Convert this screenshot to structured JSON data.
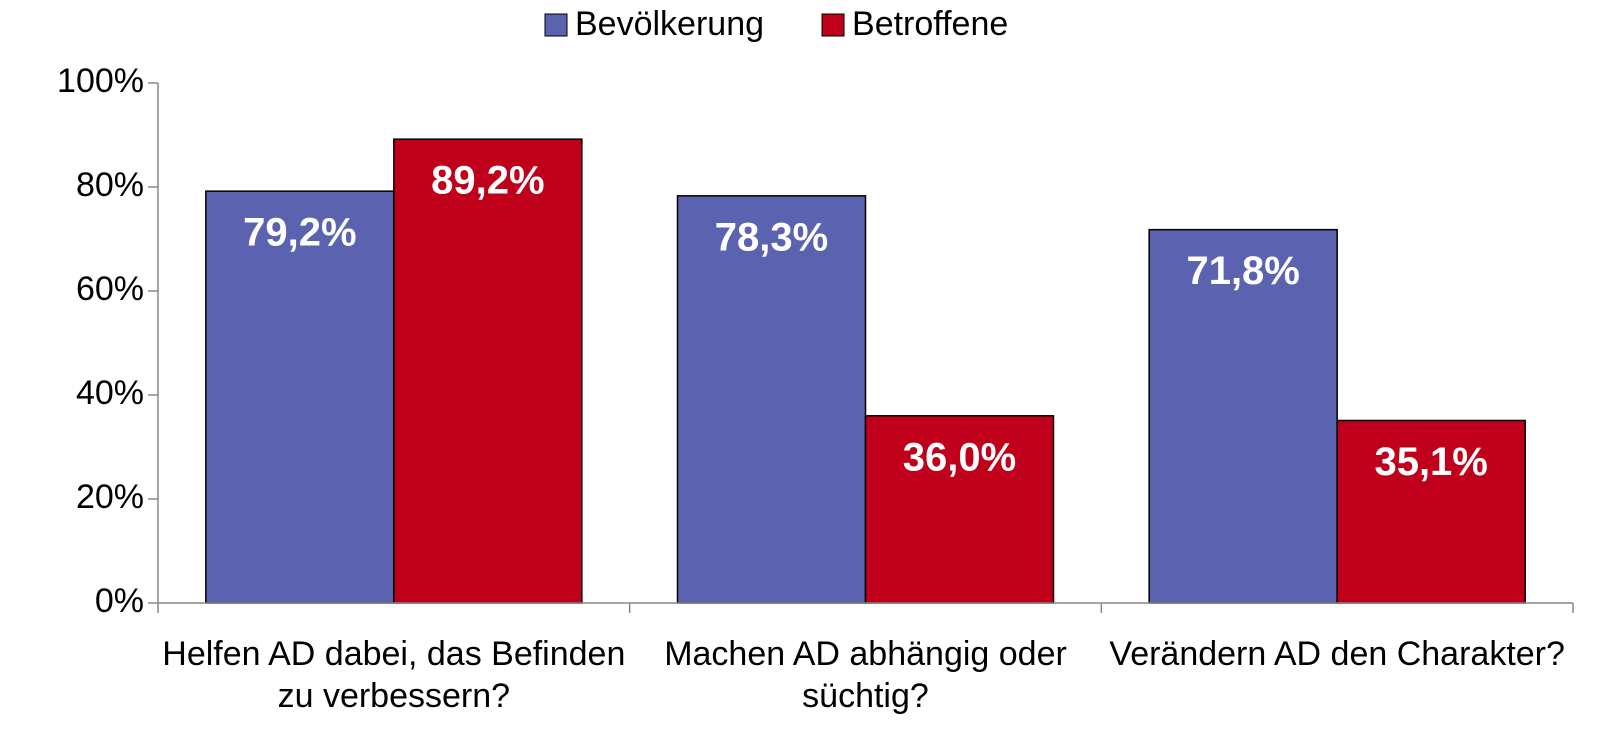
{
  "chart_data": {
    "type": "bar",
    "categories": [
      "Helfen AD dabei, das Befinden zu verbessern?",
      "Machen AD abhängig oder süchtig?",
      "Verändern AD den Charakter?"
    ],
    "series": [
      {
        "name": "Bevölkerung",
        "color": "#5b62b0",
        "values": [
          79.2,
          78.3,
          71.8
        ],
        "value_labels": [
          "79,2%",
          "78,3%",
          "71,8%"
        ]
      },
      {
        "name": "Betroffene",
        "color": "#c0001a",
        "values": [
          89.2,
          36.0,
          35.1
        ],
        "value_labels": [
          "89,2%",
          "36,0%",
          "35,1%"
        ]
      }
    ],
    "ylim": [
      0,
      100
    ],
    "yticks": [
      {
        "value": 0,
        "label": "0%"
      },
      {
        "value": 20,
        "label": "20%"
      },
      {
        "value": 40,
        "label": "40%"
      },
      {
        "value": 60,
        "label": "60%"
      },
      {
        "value": 80,
        "label": "80%"
      },
      {
        "value": 100,
        "label": "100%"
      }
    ],
    "legend": "top"
  }
}
